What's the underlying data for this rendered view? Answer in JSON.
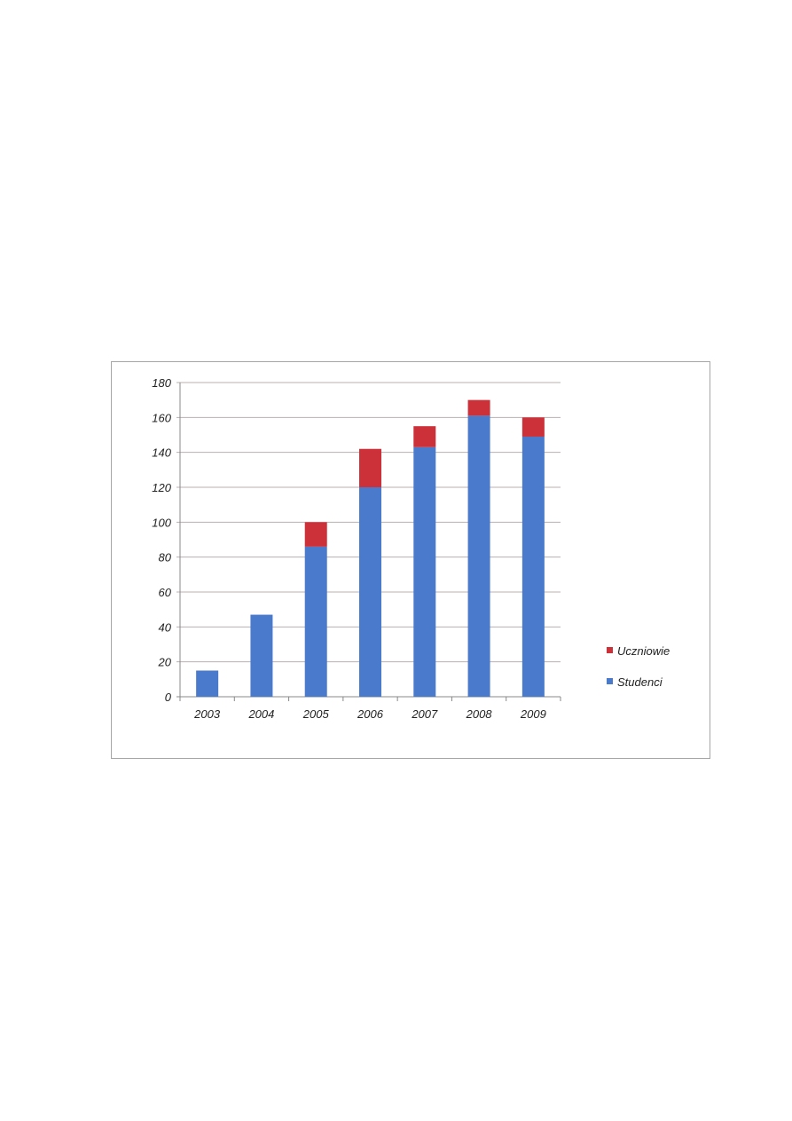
{
  "chart_data": {
    "type": "bar",
    "stacked": true,
    "categories": [
      "2003",
      "2004",
      "2005",
      "2006",
      "2007",
      "2008",
      "2009"
    ],
    "series": [
      {
        "name": "Studenci",
        "color": "#4a7acb",
        "values": [
          15,
          47,
          86,
          120,
          143,
          161,
          149
        ]
      },
      {
        "name": "Uczniowie",
        "color": "#cc3038",
        "values": [
          0,
          0,
          14,
          22,
          12,
          9,
          11
        ]
      }
    ],
    "ylim": [
      0,
      180
    ],
    "yticks": [
      0,
      20,
      40,
      60,
      80,
      100,
      120,
      140,
      160,
      180
    ],
    "grid": true,
    "legend": "right",
    "legend_order": [
      "Uczniowie",
      "Studenci"
    ]
  }
}
